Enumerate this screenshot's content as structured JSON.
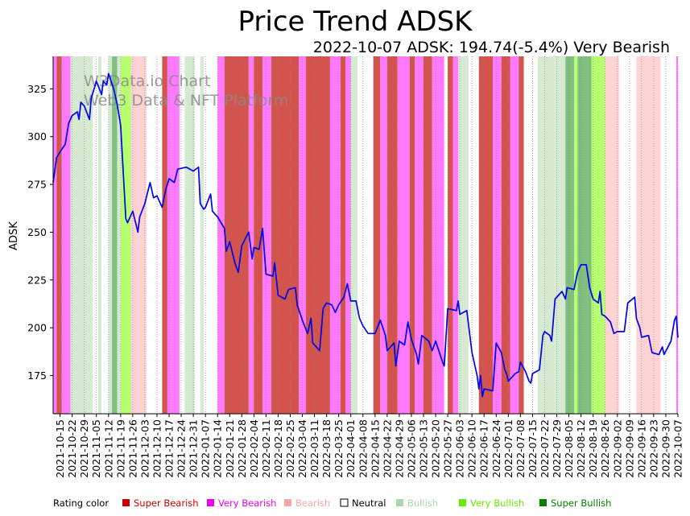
{
  "chart_data": {
    "type": "line",
    "title": "Price Trend ADSK",
    "subtitle": "2022-10-07 ADSK: 194.74(-5.4%) Very Bearish",
    "xlabel": "",
    "ylabel": "ADSK",
    "ylim": [
      155,
      342
    ],
    "y_ticks": [
      175,
      200,
      225,
      250,
      275,
      300,
      325
    ],
    "x_start": "2021-10-11",
    "x_end": "2022-10-07",
    "x_ticks": [
      "2021-10-15",
      "2021-10-22",
      "2021-10-29",
      "2021-11-05",
      "2021-11-12",
      "2021-11-19",
      "2021-11-26",
      "2021-12-03",
      "2021-12-10",
      "2021-12-17",
      "2021-12-24",
      "2021-12-31",
      "2022-01-07",
      "2022-01-14",
      "2022-01-21",
      "2022-01-28",
      "2022-02-04",
      "2022-02-11",
      "2022-02-18",
      "2022-02-25",
      "2022-03-04",
      "2022-03-11",
      "2022-03-18",
      "2022-03-25",
      "2022-04-01",
      "2022-04-08",
      "2022-04-15",
      "2022-04-22",
      "2022-04-29",
      "2022-05-06",
      "2022-05-13",
      "2022-05-20",
      "2022-05-27",
      "2022-06-03",
      "2022-06-10",
      "2022-06-17",
      "2022-06-24",
      "2022-07-01",
      "2022-07-08",
      "2022-07-15",
      "2022-07-22",
      "2022-07-29",
      "2022-08-05",
      "2022-08-12",
      "2022-08-19",
      "2022-08-26",
      "2022-09-02",
      "2022-09-09",
      "2022-09-16",
      "2022-09-23",
      "2022-09-30",
      "2022-10-07"
    ],
    "series": [
      {
        "name": "ADSK",
        "color": "#0000ee",
        "points": [
          [
            "2021-10-11",
            276
          ],
          [
            "2021-10-13",
            289
          ],
          [
            "2021-10-15",
            292
          ],
          [
            "2021-10-18",
            296
          ],
          [
            "2021-10-20",
            307
          ],
          [
            "2021-10-22",
            311
          ],
          [
            "2021-10-25",
            313
          ],
          [
            "2021-10-26",
            309
          ],
          [
            "2021-10-27",
            318
          ],
          [
            "2021-10-29",
            316
          ],
          [
            "2021-11-01",
            309
          ],
          [
            "2021-11-02",
            320
          ],
          [
            "2021-11-04",
            326
          ],
          [
            "2021-11-05",
            329
          ],
          [
            "2021-11-08",
            322
          ],
          [
            "2021-11-09",
            329
          ],
          [
            "2021-11-11",
            327
          ],
          [
            "2021-11-12",
            333
          ],
          [
            "2021-11-15",
            325
          ],
          [
            "2021-11-17",
            317
          ],
          [
            "2021-11-19",
            306
          ],
          [
            "2021-11-22",
            257
          ],
          [
            "2021-11-23",
            255
          ],
          [
            "2021-11-26",
            261
          ],
          [
            "2021-11-29",
            250
          ],
          [
            "2021-11-30",
            258
          ],
          [
            "2021-12-03",
            265
          ],
          [
            "2021-12-06",
            276
          ],
          [
            "2021-12-08",
            268
          ],
          [
            "2021-12-10",
            269
          ],
          [
            "2021-12-13",
            263
          ],
          [
            "2021-12-15",
            272
          ],
          [
            "2021-12-17",
            278
          ],
          [
            "2021-12-20",
            276
          ],
          [
            "2021-12-22",
            283
          ],
          [
            "2021-12-27",
            284
          ],
          [
            "2021-12-31",
            282
          ],
          [
            "2022-01-03",
            284
          ],
          [
            "2022-01-04",
            265
          ],
          [
            "2022-01-06",
            262
          ],
          [
            "2022-01-07",
            263
          ],
          [
            "2022-01-10",
            270
          ],
          [
            "2022-01-11",
            261
          ],
          [
            "2022-01-14",
            258
          ],
          [
            "2022-01-18",
            252
          ],
          [
            "2022-01-19",
            240
          ],
          [
            "2022-01-21",
            245
          ],
          [
            "2022-01-24",
            234
          ],
          [
            "2022-01-26",
            229
          ],
          [
            "2022-01-28",
            243
          ],
          [
            "2022-02-01",
            250
          ],
          [
            "2022-02-03",
            236
          ],
          [
            "2022-02-04",
            242
          ],
          [
            "2022-02-07",
            241
          ],
          [
            "2022-02-09",
            252
          ],
          [
            "2022-02-11",
            228
          ],
          [
            "2022-02-15",
            227
          ],
          [
            "2022-02-16",
            234
          ],
          [
            "2022-02-18",
            217
          ],
          [
            "2022-02-22",
            215
          ],
          [
            "2022-02-24",
            220
          ],
          [
            "2022-02-28",
            221
          ],
          [
            "2022-03-01",
            212
          ],
          [
            "2022-03-04",
            204
          ],
          [
            "2022-03-07",
            197
          ],
          [
            "2022-03-09",
            205
          ],
          [
            "2022-03-10",
            192
          ],
          [
            "2022-03-14",
            188
          ],
          [
            "2022-03-16",
            210
          ],
          [
            "2022-03-18",
            213
          ],
          [
            "2022-03-21",
            212
          ],
          [
            "2022-03-23",
            208
          ],
          [
            "2022-03-25",
            212
          ],
          [
            "2022-03-28",
            216
          ],
          [
            "2022-03-30",
            223
          ],
          [
            "2022-04-01",
            214
          ],
          [
            "2022-04-04",
            214
          ],
          [
            "2022-04-06",
            205
          ],
          [
            "2022-04-08",
            201
          ],
          [
            "2022-04-11",
            197
          ],
          [
            "2022-04-13",
            197
          ],
          [
            "2022-04-15",
            197
          ],
          [
            "2022-04-18",
            204
          ],
          [
            "2022-04-21",
            196
          ],
          [
            "2022-04-22",
            188
          ],
          [
            "2022-04-26",
            192
          ],
          [
            "2022-04-27",
            180
          ],
          [
            "2022-04-29",
            193
          ],
          [
            "2022-05-02",
            191
          ],
          [
            "2022-05-04",
            203
          ],
          [
            "2022-05-06",
            194
          ],
          [
            "2022-05-09",
            186
          ],
          [
            "2022-05-10",
            181
          ],
          [
            "2022-05-12",
            196
          ],
          [
            "2022-05-16",
            193
          ],
          [
            "2022-05-18",
            188
          ],
          [
            "2022-05-20",
            193
          ],
          [
            "2022-05-24",
            182
          ],
          [
            "2022-05-25",
            180
          ],
          [
            "2022-05-27",
            210
          ],
          [
            "2022-06-01",
            209
          ],
          [
            "2022-06-02",
            214
          ],
          [
            "2022-06-03",
            207
          ],
          [
            "2022-06-07",
            209
          ],
          [
            "2022-06-10",
            187
          ],
          [
            "2022-06-13",
            175
          ],
          [
            "2022-06-14",
            168
          ],
          [
            "2022-06-15",
            175
          ],
          [
            "2022-06-16",
            164
          ],
          [
            "2022-06-17",
            168
          ],
          [
            "2022-06-22",
            167
          ],
          [
            "2022-06-24",
            192
          ],
          [
            "2022-06-27",
            187
          ],
          [
            "2022-06-29",
            178
          ],
          [
            "2022-06-30",
            176
          ],
          [
            "2022-07-01",
            172
          ],
          [
            "2022-07-05",
            176
          ],
          [
            "2022-07-07",
            177
          ],
          [
            "2022-07-08",
            182
          ],
          [
            "2022-07-11",
            177
          ],
          [
            "2022-07-13",
            172
          ],
          [
            "2022-07-14",
            171
          ],
          [
            "2022-07-15",
            176
          ],
          [
            "2022-07-19",
            178
          ],
          [
            "2022-07-21",
            196
          ],
          [
            "2022-07-22",
            198
          ],
          [
            "2022-07-25",
            196
          ],
          [
            "2022-07-26",
            193
          ],
          [
            "2022-07-28",
            215
          ],
          [
            "2022-08-01",
            219
          ],
          [
            "2022-08-03",
            215
          ],
          [
            "2022-08-04",
            221
          ],
          [
            "2022-08-08",
            220
          ],
          [
            "2022-08-10",
            229
          ],
          [
            "2022-08-12",
            233
          ],
          [
            "2022-08-15",
            233
          ],
          [
            "2022-08-17",
            221
          ],
          [
            "2022-08-19",
            215
          ],
          [
            "2022-08-22",
            213
          ],
          [
            "2022-08-23",
            219
          ],
          [
            "2022-08-24",
            207
          ],
          [
            "2022-08-26",
            206
          ],
          [
            "2022-08-29",
            203
          ],
          [
            "2022-08-31",
            197
          ],
          [
            "2022-09-02",
            198
          ],
          [
            "2022-09-06",
            198
          ],
          [
            "2022-09-08",
            213
          ],
          [
            "2022-09-12",
            216
          ],
          [
            "2022-09-13",
            205
          ],
          [
            "2022-09-15",
            200
          ],
          [
            "2022-09-16",
            195
          ],
          [
            "2022-09-20",
            196
          ],
          [
            "2022-09-22",
            187
          ],
          [
            "2022-09-26",
            186
          ],
          [
            "2022-09-28",
            190
          ],
          [
            "2022-09-29",
            186
          ],
          [
            "2022-10-03",
            193
          ],
          [
            "2022-10-05",
            204
          ],
          [
            "2022-10-06",
            206
          ],
          [
            "2022-10-07",
            194.74
          ]
        ]
      }
    ],
    "rating_bands": [
      [
        "2021-10-11",
        "2021-10-13",
        "very_bearish"
      ],
      [
        "2021-10-13",
        "2021-10-16",
        "super_bearish"
      ],
      [
        "2021-10-16",
        "2021-10-21",
        "very_bearish"
      ],
      [
        "2021-10-21",
        "2021-11-03",
        "bullish"
      ],
      [
        "2021-11-03",
        "2021-11-06",
        "neutral"
      ],
      [
        "2021-11-06",
        "2021-11-08",
        "bullish"
      ],
      [
        "2021-11-08",
        "2021-11-12",
        "neutral"
      ],
      [
        "2021-11-12",
        "2021-11-14",
        "bullish"
      ],
      [
        "2021-11-14",
        "2021-11-17",
        "super_bullish"
      ],
      [
        "2021-11-17",
        "2021-11-19",
        "bullish"
      ],
      [
        "2021-11-19",
        "2021-11-25",
        "very_bullish"
      ],
      [
        "2021-11-25",
        "2021-12-04",
        "bearish"
      ],
      [
        "2021-12-04",
        "2021-12-13",
        "neutral"
      ],
      [
        "2021-12-13",
        "2021-12-16",
        "super_bearish"
      ],
      [
        "2021-12-16",
        "2021-12-23",
        "very_bearish"
      ],
      [
        "2021-12-23",
        "2021-12-26",
        "neutral"
      ],
      [
        "2021-12-26",
        "2022-01-01",
        "bullish"
      ],
      [
        "2022-01-01",
        "2022-01-04",
        "neutral"
      ],
      [
        "2022-01-04",
        "2022-01-06",
        "bullish"
      ],
      [
        "2022-01-06",
        "2022-01-14",
        "neutral"
      ],
      [
        "2022-01-14",
        "2022-01-18",
        "very_bearish"
      ],
      [
        "2022-01-18",
        "2022-02-01",
        "super_bearish"
      ],
      [
        "2022-02-01",
        "2022-02-04",
        "very_bearish"
      ],
      [
        "2022-02-04",
        "2022-02-09",
        "super_bearish"
      ],
      [
        "2022-02-09",
        "2022-02-14",
        "very_bearish"
      ],
      [
        "2022-02-14",
        "2022-03-02",
        "super_bearish"
      ],
      [
        "2022-03-02",
        "2022-03-06",
        "very_bearish"
      ],
      [
        "2022-03-06",
        "2022-03-20",
        "super_bearish"
      ],
      [
        "2022-03-20",
        "2022-03-26",
        "very_bearish"
      ],
      [
        "2022-03-26",
        "2022-03-29",
        "super_bearish"
      ],
      [
        "2022-03-29",
        "2022-04-01",
        "very_bearish"
      ],
      [
        "2022-04-01",
        "2022-04-05",
        "bullish"
      ],
      [
        "2022-04-05",
        "2022-04-14",
        "neutral"
      ],
      [
        "2022-04-14",
        "2022-04-18",
        "super_bearish"
      ],
      [
        "2022-04-18",
        "2022-04-22",
        "very_bearish"
      ],
      [
        "2022-04-22",
        "2022-04-28",
        "super_bearish"
      ],
      [
        "2022-04-28",
        "2022-05-05",
        "very_bearish"
      ],
      [
        "2022-05-05",
        "2022-05-08",
        "super_bearish"
      ],
      [
        "2022-05-08",
        "2022-05-13",
        "very_bearish"
      ],
      [
        "2022-05-13",
        "2022-05-18",
        "super_bearish"
      ],
      [
        "2022-05-18",
        "2022-05-25",
        "very_bearish"
      ],
      [
        "2022-05-25",
        "2022-05-27",
        "neutral"
      ],
      [
        "2022-05-27",
        "2022-05-30",
        "super_bearish"
      ],
      [
        "2022-05-30",
        "2022-06-02",
        "very_bearish"
      ],
      [
        "2022-06-02",
        "2022-06-08",
        "bullish"
      ],
      [
        "2022-06-08",
        "2022-06-14",
        "neutral"
      ],
      [
        "2022-06-14",
        "2022-06-22",
        "super_bearish"
      ],
      [
        "2022-06-22",
        "2022-06-27",
        "very_bearish"
      ],
      [
        "2022-06-27",
        "2022-07-02",
        "super_bearish"
      ],
      [
        "2022-07-02",
        "2022-07-07",
        "very_bearish"
      ],
      [
        "2022-07-07",
        "2022-07-10",
        "super_bearish"
      ],
      [
        "2022-07-10",
        "2022-07-18",
        "neutral"
      ],
      [
        "2022-07-18",
        "2022-07-28",
        "bullish"
      ],
      [
        "2022-07-28",
        "2022-08-03",
        "bullish"
      ],
      [
        "2022-08-03",
        "2022-08-08",
        "super_bullish"
      ],
      [
        "2022-08-08",
        "2022-08-10",
        "very_bullish"
      ],
      [
        "2022-08-10",
        "2022-08-18",
        "super_bullish"
      ],
      [
        "2022-08-18",
        "2022-08-26",
        "very_bullish"
      ],
      [
        "2022-08-26",
        "2022-09-03",
        "bearish"
      ],
      [
        "2022-09-03",
        "2022-09-13",
        "neutral"
      ],
      [
        "2022-09-13",
        "2022-09-27",
        "bearish"
      ],
      [
        "2022-09-27",
        "2022-10-06",
        "neutral"
      ],
      [
        "2022-10-06",
        "2022-10-08",
        "very_bearish"
      ]
    ],
    "watermark_line1": "W3Data.io Chart",
    "watermark_line2": "Web3 Data & NFT Platform",
    "legend": {
      "title": "Rating color",
      "items": [
        {
          "key": "super_bearish",
          "label": "Super Bearish",
          "color": "#cc0000",
          "band_color": "#d2544c"
        },
        {
          "key": "very_bearish",
          "label": "Very Bearish",
          "color": "#ee00ee",
          "band_color": "#ff7aff"
        },
        {
          "key": "bearish",
          "label": "Bearish",
          "color": "#f4a7a7",
          "band_color": "#ffd3d3"
        },
        {
          "key": "neutral",
          "label": "Neutral",
          "color": "#ffffff",
          "band_color": "#ffffff"
        },
        {
          "key": "bullish",
          "label": "Bullish",
          "color": "#a8d8a8",
          "band_color": "#d6ead2"
        },
        {
          "key": "very_bullish",
          "label": "Very Bullish",
          "color": "#66ee00",
          "band_color": "#b6ff6e"
        },
        {
          "key": "super_bullish",
          "label": "Super Bullish",
          "color": "#008000",
          "band_color": "#7fbf7f"
        }
      ]
    }
  }
}
